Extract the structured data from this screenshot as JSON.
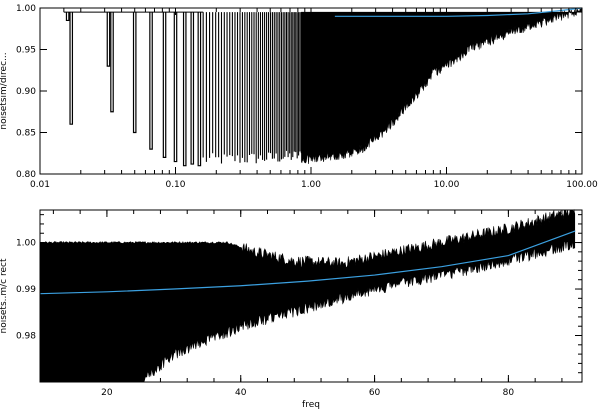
{
  "chart_data": [
    {
      "type": "line",
      "xscale": "log",
      "xlim": [
        0.01,
        100.0
      ],
      "ylim": [
        0.8,
        1.0
      ],
      "xlabel": "",
      "ylabel": "noisetsim/direc...",
      "xticks": [
        "0.01",
        "0.10",
        "1.00",
        "10.00",
        "100.00"
      ],
      "yticks": [
        "0.80",
        "0.85",
        "0.90",
        "0.95",
        "1.00"
      ],
      "series": [
        {
          "color": "#000000",
          "style": "dense-oscillation",
          "notch_x": [
            0.016,
            0.017,
            0.032,
            0.034,
            0.05,
            0.066,
            0.083,
            0.1,
            0.117,
            0.133,
            0.15
          ],
          "notch_min": [
            0.985,
            0.86,
            0.93,
            0.875,
            0.85,
            0.83,
            0.82,
            0.815,
            0.81,
            0.812,
            0.81
          ],
          "lower_envelope": {
            "x": [
              0.2,
              0.5,
              0.9,
              1.5,
              2.2,
              3.0,
              5.0,
              8.0,
              15.0,
              30.0,
              60.0,
              100.0
            ],
            "y": [
              0.81,
              0.812,
              0.815,
              0.82,
              0.825,
              0.84,
              0.88,
              0.92,
              0.95,
              0.97,
              0.985,
              0.997
            ]
          }
        },
        {
          "color": "#3ba0e0",
          "x": [
            1.5,
            5.0,
            10.0,
            20.0,
            40.0,
            70.0,
            100.0
          ],
          "y": [
            0.99,
            0.99,
            0.99,
            0.991,
            0.993,
            0.997,
            1.0
          ]
        }
      ]
    },
    {
      "type": "line",
      "xlim": [
        10,
        91
      ],
      "ylim": [
        0.97,
        1.007
      ],
      "xlabel": "freq",
      "ylabel": "noisets..m/c rect",
      "xticks": [
        "20",
        "40",
        "60",
        "80"
      ],
      "yticks": [
        "0.98",
        "0.99",
        "1.00"
      ],
      "series": [
        {
          "color": "#000000",
          "style": "dense-noise",
          "upper_envelope": {
            "x": [
              10,
              38,
              42,
              48,
              55,
              60,
              70,
              80,
              90
            ],
            "y": [
              1.0,
              1.0,
              0.998,
              0.996,
              0.9955,
              0.997,
              1.0,
              1.003,
              1.007
            ]
          },
          "lower_envelope": {
            "x": [
              10,
              25,
              30,
              40,
              50,
              60,
              70,
              80,
              90
            ],
            "y": [
              0.96,
              0.97,
              0.976,
              0.982,
              0.986,
              0.99,
              0.993,
              0.996,
              1.0
            ]
          }
        },
        {
          "color": "#3ba0e0",
          "x": [
            10,
            20,
            30,
            40,
            50,
            60,
            70,
            80,
            90
          ],
          "y": [
            0.989,
            0.9894,
            0.99,
            0.9907,
            0.9917,
            0.993,
            0.9948,
            0.9972,
            1.0025
          ]
        }
      ]
    }
  ]
}
